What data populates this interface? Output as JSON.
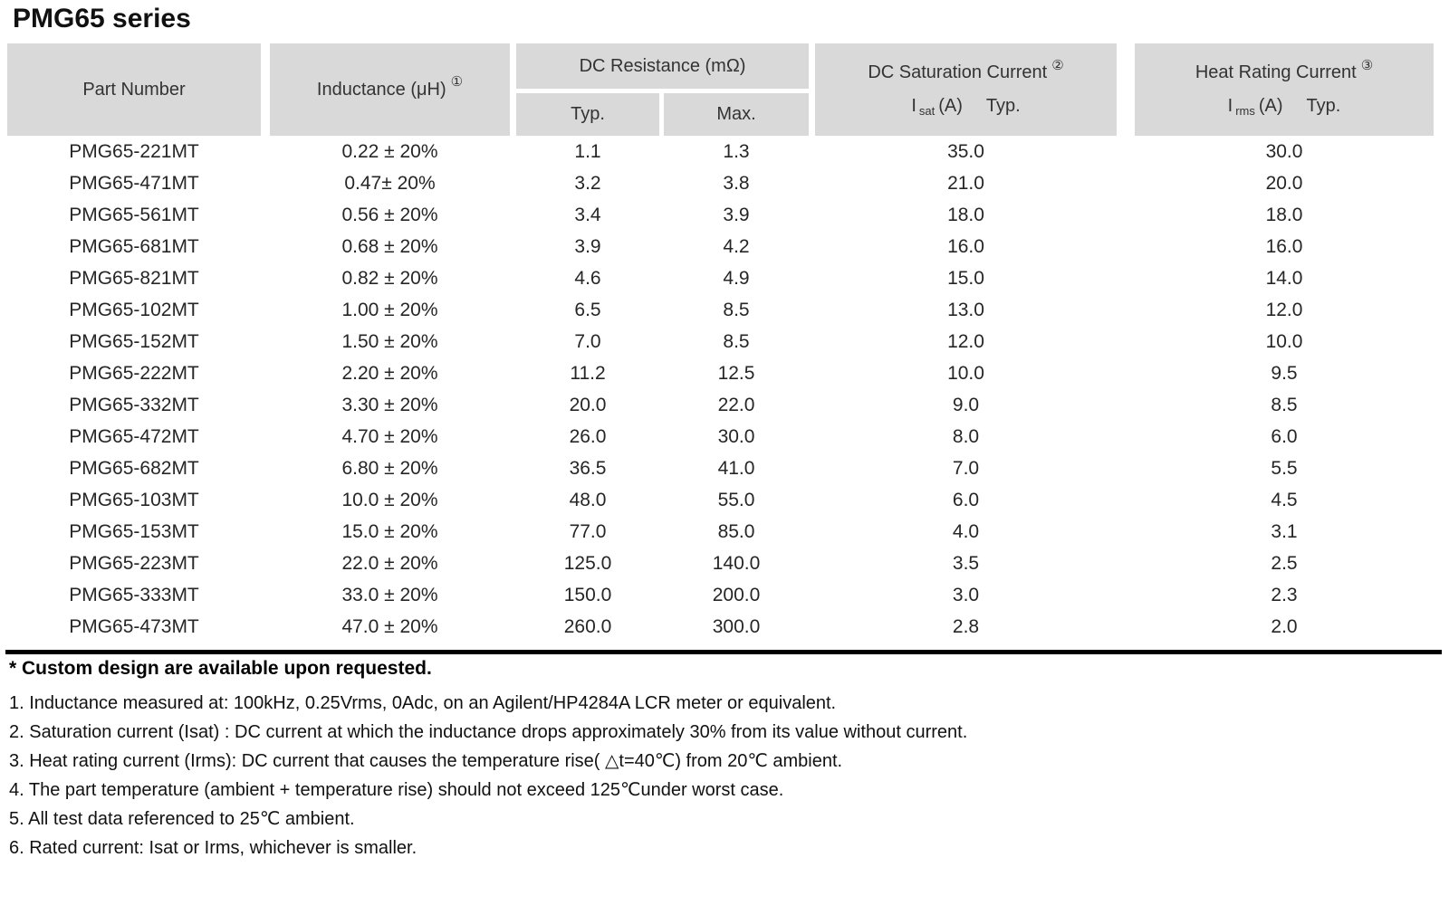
{
  "page_title": "PMG65 series",
  "table": {
    "header": {
      "part_number": "Part Number",
      "inductance_label": "Inductance (μH)",
      "inductance_sup": "①",
      "dc_resistance": "DC Resistance (mΩ)",
      "typ": "Typ.",
      "max": "Max.",
      "saturation_label": "DC Saturation Current",
      "saturation_sup": "②",
      "saturation_sub_i": "I",
      "saturation_sub_script": "sat",
      "saturation_sub_unit": "(A)",
      "saturation_sub_typ": "Typ.",
      "heat_label": "Heat Rating Current",
      "heat_sup": "③",
      "heat_sub_i": "I",
      "heat_sub_script": "rms",
      "heat_sub_unit": "(A)",
      "heat_sub_typ": "Typ."
    },
    "rows": [
      [
        "PMG65-221MT",
        "0.22 ± 20%",
        "1.1",
        "1.3",
        "35.0",
        "30.0"
      ],
      [
        "PMG65-471MT",
        "0.47± 20%",
        "3.2",
        "3.8",
        "21.0",
        "20.0"
      ],
      [
        "PMG65-561MT",
        "0.56 ± 20%",
        "3.4",
        "3.9",
        "18.0",
        "18.0"
      ],
      [
        "PMG65-681MT",
        "0.68 ± 20%",
        "3.9",
        "4.2",
        "16.0",
        "16.0"
      ],
      [
        "PMG65-821MT",
        "0.82 ± 20%",
        "4.6",
        "4.9",
        "15.0",
        "14.0"
      ],
      [
        "PMG65-102MT",
        "1.00 ± 20%",
        "6.5",
        "8.5",
        "13.0",
        "12.0"
      ],
      [
        "PMG65-152MT",
        "1.50 ± 20%",
        "7.0",
        "8.5",
        "12.0",
        "10.0"
      ],
      [
        "PMG65-222MT",
        "2.20 ± 20%",
        "11.2",
        "12.5",
        "10.0",
        "9.5"
      ],
      [
        "PMG65-332MT",
        "3.30 ± 20%",
        "20.0",
        "22.0",
        "9.0",
        "8.5"
      ],
      [
        "PMG65-472MT",
        "4.70 ± 20%",
        "26.0",
        "30.0",
        "8.0",
        "6.0"
      ],
      [
        "PMG65-682MT",
        "6.80 ± 20%",
        "36.5",
        "41.0",
        "7.0",
        "5.5"
      ],
      [
        "PMG65-103MT",
        "10.0 ± 20%",
        "48.0",
        "55.0",
        "6.0",
        "4.5"
      ],
      [
        "PMG65-153MT",
        "15.0 ± 20%",
        "77.0",
        "85.0",
        "4.0",
        "3.1"
      ],
      [
        "PMG65-223MT",
        "22.0 ± 20%",
        "125.0",
        "140.0",
        "3.5",
        "2.5"
      ],
      [
        "PMG65-333MT",
        "33.0 ± 20%",
        "150.0",
        "200.0",
        "3.0",
        "2.3"
      ],
      [
        "PMG65-473MT",
        "47.0 ± 20%",
        "260.0",
        "300.0",
        "2.8",
        "2.0"
      ]
    ]
  },
  "notes": {
    "custom": "* Custom design are available upon requested.",
    "items": [
      "1. Inductance measured at: 100kHz, 0.25Vrms, 0Adc, on an Agilent/HP4284A LCR meter or equivalent.",
      "2. Saturation current (Isat) : DC current at which the inductance drops approximately 30% from its value without current.",
      "3. Heat rating current (Irms): DC current that causes the temperature rise( △t=40℃) from 20℃ ambient.",
      "4. The part temperature (ambient + temperature rise) should not exceed 125℃under worst case.",
      "5. All test data referenced to 25℃ ambient.",
      "6. Rated current: Isat or Irms, whichever is smaller."
    ]
  },
  "colors": {
    "header_bg": "#d9d9d9",
    "rule": "#000000",
    "text": "#262626"
  }
}
